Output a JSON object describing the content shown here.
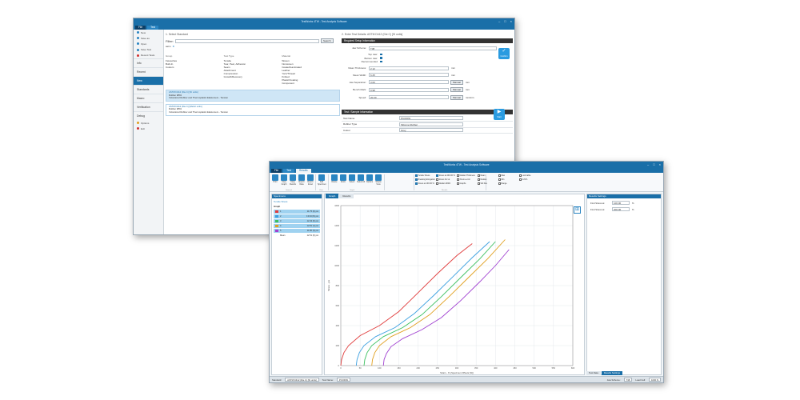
{
  "back_window": {
    "title": "TestWorks 4TW - Test Analysis Software",
    "menu": {
      "file": "File",
      "test": "Test"
    },
    "sidebar": {
      "quick": [
        "New",
        "Save as",
        "Open",
        "Save Test",
        "Recent Tests"
      ],
      "sections": [
        {
          "label": "Info"
        },
        {
          "label": "Recent"
        },
        {
          "label": "New",
          "active": true
        },
        {
          "label": "Standards"
        },
        {
          "label": "Macro"
        },
        {
          "label": "Verification"
        },
        {
          "label": "Debug"
        }
      ],
      "bottom": [
        "Options",
        "Exit"
      ]
    },
    "step1": {
      "heading": "1. Select Standard",
      "filter_label": "Filter:",
      "search_button": "Search",
      "filter_tag": "astm",
      "group_header": "Group",
      "group_items": [
        "Favourites",
        "Built-In",
        "Custom"
      ],
      "type_header": "Test Type",
      "type_items": [
        "Tensile",
        "Tear, Peel, Adhesion",
        "Seam",
        "Attachment",
        "Compression",
        "Growth/Recovery"
      ],
      "material_header": "Material",
      "material_items": [
        "Woven",
        "Nonwoven",
        "Coated/Laminated",
        "Leather",
        "Yarn/Thread",
        "Knitted",
        "Plastic/Coating",
        "Component"
      ],
      "standards": [
        {
          "name": "ASTM D412 (Die C) [SI units]",
          "l2": "Rubber Ø6%",
          "l3": "Vulcanized Rubber and Thermoplastic Elastomers - Tension",
          "selected": true
        },
        {
          "name": "ASTM D412 (Die C) [Metric units]",
          "l2": "Rubber Ø6%",
          "l3": "Vulcanized Rubber and Thermoplastic Elastomers - Tension",
          "selected": false
        }
      ]
    },
    "step2": {
      "heading": "2. Enter Test Details: ASTM D412 (Die C) [SI units]",
      "setup_header": "Required Setup Information",
      "fields": [
        {
          "label": "Jaw Scheme:",
          "value": "T38",
          "unit": ""
        },
        {
          "label": "Mean Thickness:",
          "value": "2.12",
          "unit": "mm"
        },
        {
          "label": "Mean Width:",
          "value": "6.25",
          "unit": "mm"
        },
        {
          "label": "Jaw Separation:",
          "value": "3.00",
          "unit": "mm"
        },
        {
          "label": "Bench Mark:",
          "value": "0.98",
          "unit": "mm"
        },
        {
          "label": "Speed:",
          "value": "20.00",
          "unit": "mm/min"
        }
      ],
      "jaw_sub": [
        "Top Jaw:",
        "Bottom Jaw:",
        "Recommended"
      ],
      "confirm_button": "Confirm",
      "start_button": "Start",
      "manual_label": "Manual",
      "sample_header": "Test / Sample Information",
      "sample_rows": [
        {
          "label": "Test Name",
          "value": "PCOFPA"
        },
        {
          "label": "Rubber Type",
          "value": "Silicone Rubber"
        },
        {
          "label": "Colour",
          "value": "Grey"
        }
      ]
    }
  },
  "front_window": {
    "title": "TestWorks 4TW - Test Analysis Software",
    "menu": {
      "file": "File",
      "test": "Test",
      "results": "Results"
    },
    "ribbon": {
      "buttons": [
        "Print",
        "Copy Graph",
        "Copy Results",
        "Export Data",
        "Export Excel",
        "Add Specimen",
        "Delete",
        "Zoom",
        "Select",
        "Select All",
        "Options",
        "Simple View"
      ],
      "groups": [
        "General",
        "View",
        "Graph",
        "Results"
      ],
      "checks": [
        {
          "label": "Tensile Stress",
          "on": true
        },
        {
          "label": "Breaking Elongation",
          "on": true
        },
        {
          "label": "Stress at 100.00 %",
          "on": true
        },
        {
          "label": "Stress at 200.00 %",
          "on": true
        },
        {
          "label": "Stress For at",
          "on": false
        },
        {
          "label": "Median Width",
          "on": false
        },
        {
          "label": "Median Thickness",
          "on": false
        },
        {
          "label": "Xtreme error",
          "on": false
        },
        {
          "label": "Graphs",
          "on": false
        },
        {
          "label": "Mean",
          "on": false
        },
        {
          "label": "Median",
          "on": false
        },
        {
          "label": "Std Dev",
          "on": false
        },
        {
          "label": "Max",
          "on": false
        },
        {
          "label": "Min",
          "on": false
        },
        {
          "label": "Range",
          "on": false
        },
        {
          "label": "Lock table",
          "on": false
        },
        {
          "label": "CoV%",
          "on": false
        }
      ]
    },
    "specimens": {
      "header": "Specimens",
      "test_title": "Tensile Stress",
      "sub": "Graph",
      "rows": [
        {
          "n": "1",
          "value": "11.75 (0) psi",
          "color": "#e03c3c"
        },
        {
          "n": "2",
          "value": "13.94 (N) psi",
          "color": "#3ca0e0"
        },
        {
          "n": "3",
          "value": "12.43 (0) psi",
          "color": "#3cc060"
        },
        {
          "n": "4",
          "value": "12.81 (1) psi",
          "color": "#e0a020"
        },
        {
          "n": "5",
          "value": "11.80 (3) psi",
          "color": "#a040d0"
        }
      ],
      "mean_label": "Mean",
      "mean_value": "12.51 (0) psi"
    },
    "tabs": [
      "Graph",
      "Results"
    ],
    "results_panel": {
      "header": "Results Settings",
      "rows": [
        {
          "label": "Find Stress at:",
          "value": "100.00",
          "unit": "%"
        },
        {
          "label": "Find Stress at:",
          "value": "200.00",
          "unit": "%"
        }
      ],
      "bottom_tabs": [
        "Test Data",
        "Results Settings"
      ]
    },
    "status": {
      "standard_label": "Standard:",
      "standard_value": "ASTM D412 (Die C) [SI units]",
      "test_label": "Test Name:",
      "test_value": "PCOFPA",
      "jaw_label": "Jaw Scheme:",
      "jaw_value": "T38",
      "load_label": "Load Cell:",
      "load_value": "1000 N"
    }
  },
  "chart_data": {
    "type": "line",
    "title": "",
    "xlabel": "Strain - % (Specimen Offsets [%])",
    "ylabel": "Stress - psi",
    "xlim": [
      0,
      600
    ],
    "ylim": [
      0,
      1600
    ],
    "xticks": [
      0,
      50,
      100,
      150,
      200,
      250,
      300,
      350,
      400,
      450,
      500,
      550,
      600
    ],
    "yticks": [
      0,
      200,
      400,
      600,
      800,
      1000,
      1200,
      1400,
      1600
    ],
    "grid": true,
    "series": [
      {
        "color": "#e03c3c",
        "x": [
          0,
          2,
          8,
          20,
          50,
          100,
          150,
          200,
          250,
          300,
          340
        ],
        "y": [
          0,
          60,
          130,
          200,
          300,
          400,
          540,
          730,
          920,
          1100,
          1220
        ]
      },
      {
        "color": "#3ca0e0",
        "x": [
          40,
          42,
          48,
          60,
          90,
          140,
          190,
          240,
          290,
          340,
          385
        ],
        "y": [
          0,
          60,
          130,
          200,
          290,
          380,
          520,
          700,
          890,
          1080,
          1240
        ]
      },
      {
        "color": "#3cc060",
        "x": [
          60,
          62,
          68,
          80,
          110,
          160,
          210,
          260,
          310,
          360,
          400
        ],
        "y": [
          0,
          60,
          130,
          200,
          290,
          380,
          510,
          690,
          880,
          1070,
          1240
        ]
      },
      {
        "color": "#e0a020",
        "x": [
          80,
          82,
          88,
          100,
          130,
          180,
          230,
          280,
          330,
          380,
          425
        ],
        "y": [
          0,
          60,
          130,
          200,
          290,
          380,
          510,
          690,
          880,
          1070,
          1260
        ]
      },
      {
        "color": "#a040d0",
        "x": [
          110,
          112,
          118,
          130,
          160,
          210,
          260,
          310,
          360,
          400,
          435
        ],
        "y": [
          0,
          60,
          120,
          190,
          270,
          360,
          480,
          650,
          840,
          1000,
          1160
        ]
      }
    ]
  }
}
